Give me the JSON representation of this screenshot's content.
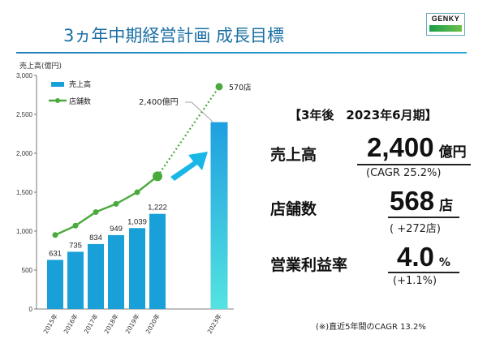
{
  "slide": {
    "title": "3ヵ年中期経営計画 成長目標",
    "logo_text": "GENKY",
    "footnote": "(※)直近5年間のCAGR 13.2%"
  },
  "summary": {
    "heading": "【3年後　2023年6月期】",
    "items": [
      {
        "label": "売上高",
        "value": "2,400",
        "unit": "億円",
        "sub": "(CAGR 25.2%)"
      },
      {
        "label": "店舗数",
        "value": "568",
        "unit": "店",
        "sub": "( +272店)"
      },
      {
        "label": "営業利益率",
        "value": "4.0",
        "unit": "%",
        "sub": "(+1.1%)"
      }
    ]
  },
  "colors": {
    "title": "#1a6fa3",
    "bar": "#1aa0d8",
    "bar_2023_top": "#1f9fe0",
    "bar_2023_bottom": "#54e3e1",
    "line": "#4aaa3c",
    "arrow": "#19b7e6"
  },
  "chart_data": {
    "type": "bar",
    "yaxis_title": "売上高(億円)",
    "ylim": [
      0,
      3000
    ],
    "yticks": [
      "0",
      "500",
      "1,000",
      "1,500",
      "2,000",
      "2,500",
      "3,000"
    ],
    "categories": [
      "2015年",
      "2016年",
      "2017年",
      "2018年",
      "2019年",
      "2020年",
      "2023年"
    ],
    "series": [
      {
        "name": "売上高",
        "kind": "bar",
        "values": [
          631,
          735,
          834,
          949,
          1039,
          1222,
          2400
        ],
        "labels": [
          "631",
          "735",
          "834",
          "949",
          "1,039",
          "1,222",
          ""
        ]
      },
      {
        "name": "店舗数",
        "kind": "line",
        "values": [
          950,
          1070,
          1245,
          1350,
          1500,
          1705,
          2855
        ],
        "dotted_last_segment": true
      }
    ],
    "annotations": {
      "bar_2023_label": "2,400億円",
      "line_end_label": "570店"
    },
    "legend_placement": "top-left",
    "grid": false
  }
}
